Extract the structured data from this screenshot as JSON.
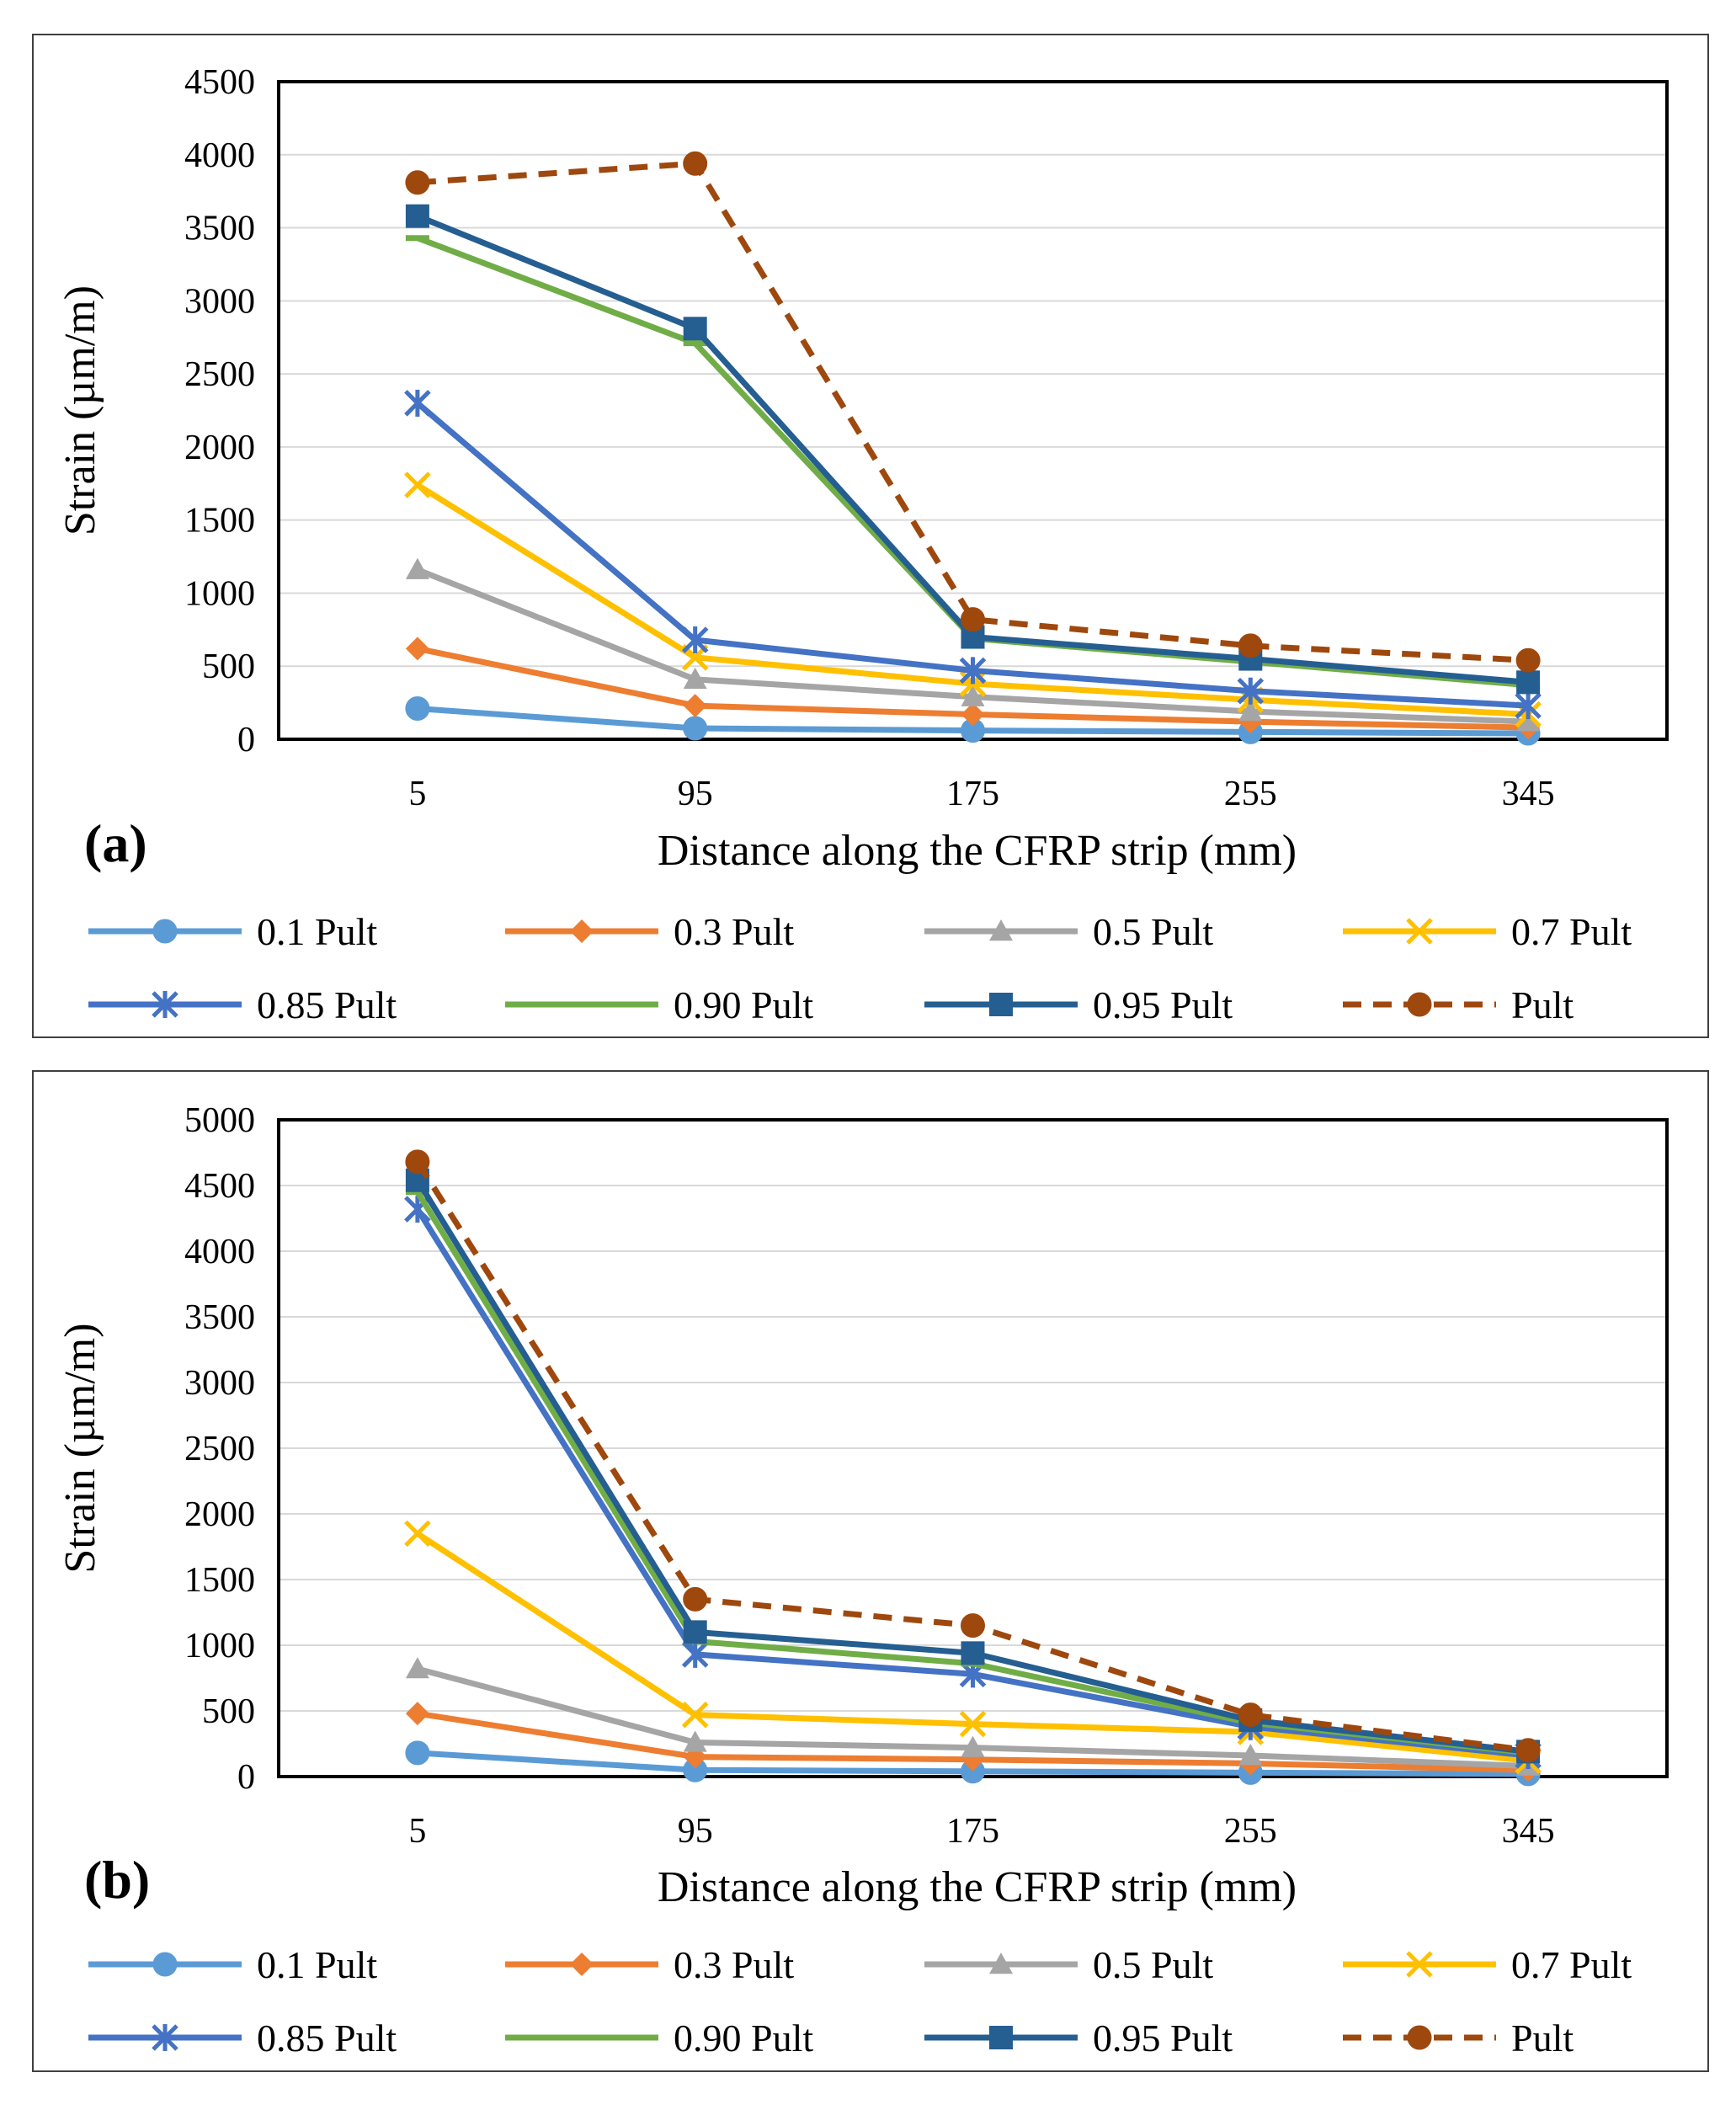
{
  "chart_data": [
    {
      "type": "line",
      "panel_label": "(a)",
      "xlabel": "Distance along the CFRP strip (mm)",
      "ylabel": "Strain (µm/m)",
      "categories": [
        "5",
        "95",
        "175",
        "255",
        "345"
      ],
      "ylim": [
        0,
        4500
      ],
      "yticks": [
        0,
        500,
        1000,
        1500,
        2000,
        2500,
        3000,
        3500,
        4000,
        4500
      ],
      "grid": true,
      "legend_position": "bottom",
      "series": [
        {
          "name": "0.1 Pult",
          "color": "#5B9BD5",
          "marker": "circle",
          "dashed": false,
          "values": [
            210,
            75,
            60,
            50,
            40
          ]
        },
        {
          "name": "0.3 Pult",
          "color": "#ED7D31",
          "marker": "diamond",
          "dashed": false,
          "values": [
            620,
            230,
            170,
            120,
            80
          ]
        },
        {
          "name": "0.5 Pult",
          "color": "#A5A5A5",
          "marker": "triangle",
          "dashed": false,
          "values": [
            1160,
            410,
            290,
            190,
            120
          ]
        },
        {
          "name": "0.7 Pult",
          "color": "#FFC000",
          "marker": "x",
          "dashed": false,
          "values": [
            1740,
            560,
            380,
            270,
            170
          ]
        },
        {
          "name": "0.85 Pult",
          "color": "#4472C4",
          "marker": "star",
          "dashed": false,
          "values": [
            2300,
            680,
            470,
            330,
            230
          ]
        },
        {
          "name": "0.90 Pult",
          "color": "#70AD47",
          "marker": "dash",
          "dashed": false,
          "values": [
            3430,
            2710,
            690,
            530,
            370
          ]
        },
        {
          "name": "0.95 Pult",
          "color": "#255E91",
          "marker": "square",
          "dashed": false,
          "values": [
            3580,
            2810,
            700,
            550,
            390
          ]
        },
        {
          "name": "Pult",
          "color": "#9E480E",
          "marker": "circle",
          "dashed": true,
          "values": [
            3810,
            3940,
            820,
            640,
            540
          ]
        }
      ]
    },
    {
      "type": "line",
      "panel_label": "(b)",
      "xlabel": "Distance along the CFRP strip (mm)",
      "ylabel": "Strain (µm/m)",
      "categories": [
        "5",
        "95",
        "175",
        "255",
        "345"
      ],
      "ylim": [
        0,
        5000
      ],
      "yticks": [
        0,
        500,
        1000,
        1500,
        2000,
        2500,
        3000,
        3500,
        4000,
        4500,
        5000
      ],
      "grid": true,
      "legend_position": "bottom",
      "series": [
        {
          "name": "0.1 Pult",
          "color": "#5B9BD5",
          "marker": "circle",
          "dashed": false,
          "values": [
            180,
            50,
            40,
            30,
            20
          ]
        },
        {
          "name": "0.3 Pult",
          "color": "#ED7D31",
          "marker": "diamond",
          "dashed": false,
          "values": [
            480,
            150,
            130,
            100,
            50
          ]
        },
        {
          "name": "0.5 Pult",
          "color": "#A5A5A5",
          "marker": "triangle",
          "dashed": false,
          "values": [
            820,
            260,
            220,
            160,
            80
          ]
        },
        {
          "name": "0.7 Pult",
          "color": "#FFC000",
          "marker": "x",
          "dashed": false,
          "values": [
            1850,
            470,
            400,
            340,
            120
          ]
        },
        {
          "name": "0.85 Pult",
          "color": "#4472C4",
          "marker": "star",
          "dashed": false,
          "values": [
            4320,
            930,
            780,
            380,
            160
          ]
        },
        {
          "name": "0.90 Pult",
          "color": "#70AD47",
          "marker": "dash",
          "dashed": false,
          "values": [
            4450,
            1030,
            860,
            410,
            180
          ]
        },
        {
          "name": "0.95 Pult",
          "color": "#255E91",
          "marker": "square",
          "dashed": false,
          "values": [
            4540,
            1100,
            940,
            430,
            190
          ]
        },
        {
          "name": "Pult",
          "color": "#9E480E",
          "marker": "circle",
          "dashed": true,
          "values": [
            4680,
            1350,
            1150,
            470,
            200
          ]
        }
      ]
    }
  ]
}
